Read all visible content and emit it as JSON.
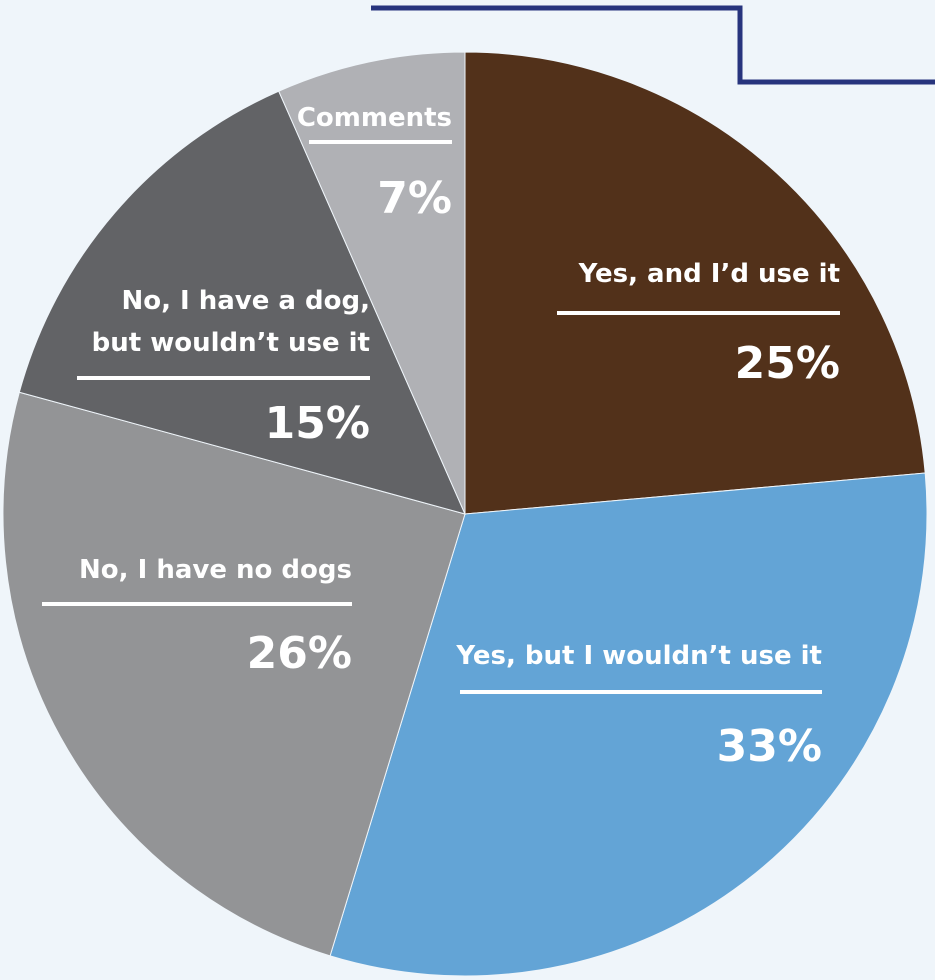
{
  "chart_data": {
    "type": "pie",
    "slices": [
      {
        "label_lines": [
          "Yes, and I’d use it"
        ],
        "value": 25,
        "display": "25%",
        "color": "#52311a"
      },
      {
        "label_lines": [
          "Yes, but I wouldn’t use it"
        ],
        "value": 33,
        "display": "33%",
        "color": "#63a4d6"
      },
      {
        "label_lines": [
          "No, I have no dogs"
        ],
        "value": 26,
        "display": "26%",
        "color": "#939496"
      },
      {
        "label_lines": [
          "No, I have a dog,",
          "but wouldn’t use it"
        ],
        "value": 15,
        "display": "15%",
        "color": "#626366"
      },
      {
        "label_lines": [
          "Comments"
        ],
        "value": 7,
        "display": "7%",
        "color": "#b0b1b5"
      }
    ],
    "start": "12 o'clock",
    "direction": "clockwise",
    "legend": "none",
    "slice_label_color": "#ffffff",
    "accent_color": "#27347d"
  }
}
